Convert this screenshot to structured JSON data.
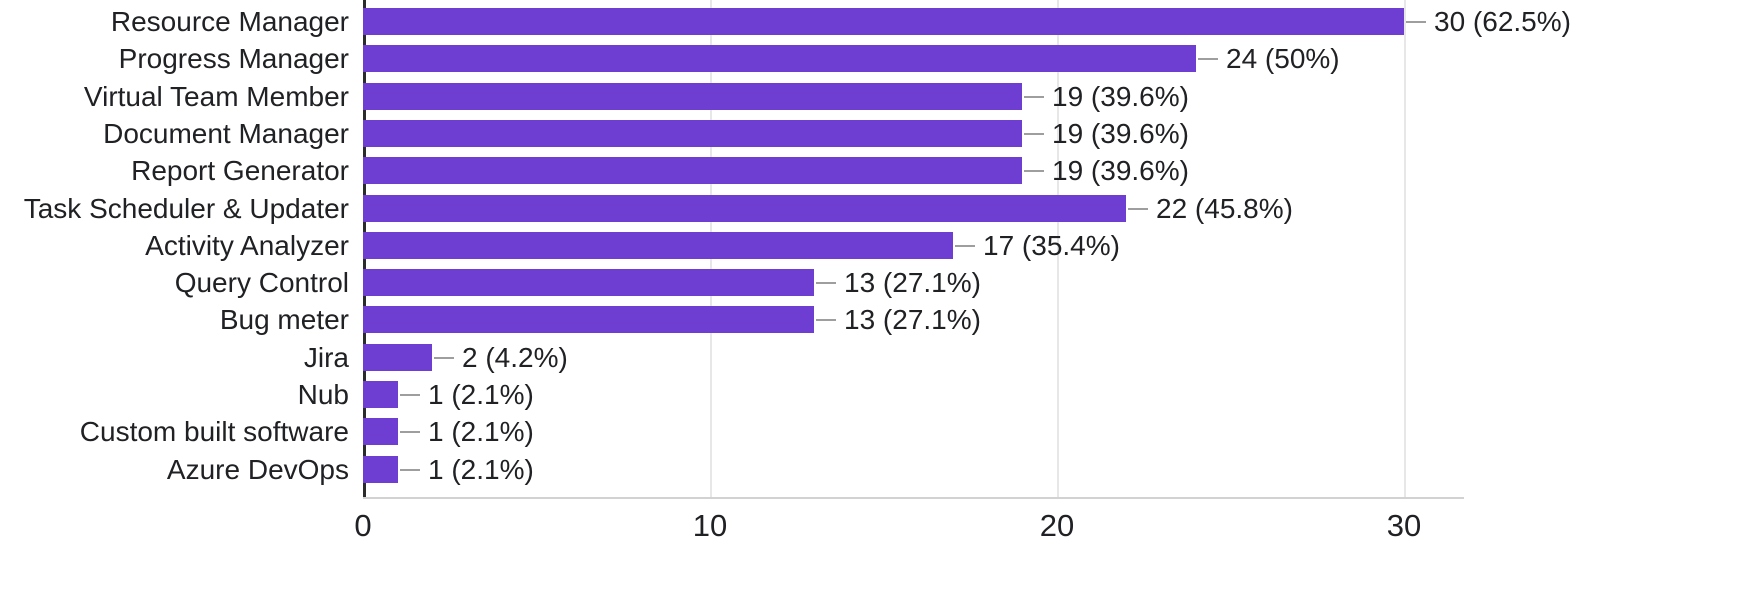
{
  "chart_data": {
    "type": "bar",
    "orientation": "horizontal",
    "title": "",
    "xlabel": "",
    "ylabel": "",
    "categories": [
      "Resource Manager",
      "Progress Manager",
      "Virtual Team Member",
      "Document Manager",
      "Report Generator",
      "Task Scheduler & Updater",
      "Activity Analyzer",
      "Query Control",
      "Bug meter",
      "Jira",
      "Nub",
      "Custom built software",
      "Azure DevOps"
    ],
    "values": [
      30,
      24,
      19,
      19,
      19,
      22,
      17,
      13,
      13,
      2,
      1,
      1,
      1
    ],
    "data_labels": [
      "30 (62.5%)",
      "24 (50%)",
      "19 (39.6%)",
      "19 (39.6%)",
      "19 (39.6%)",
      "22 (45.8%)",
      "17 (35.4%)",
      "13 (27.1%)",
      "13 (27.1%)",
      "2 (4.2%)",
      "1 (2.1%)",
      "1 (2.1%)",
      "1 (2.1%)"
    ],
    "x_ticks": [
      0,
      10,
      20,
      30
    ],
    "xlim": [
      0,
      30
    ],
    "grid": true,
    "legend": false,
    "bar_color": "#6e3ed2",
    "connector_color": "#9e9e9e",
    "gridline_color": "#e7e7e7",
    "axis_color": "#2b2b2b",
    "text_color": "#202124"
  }
}
